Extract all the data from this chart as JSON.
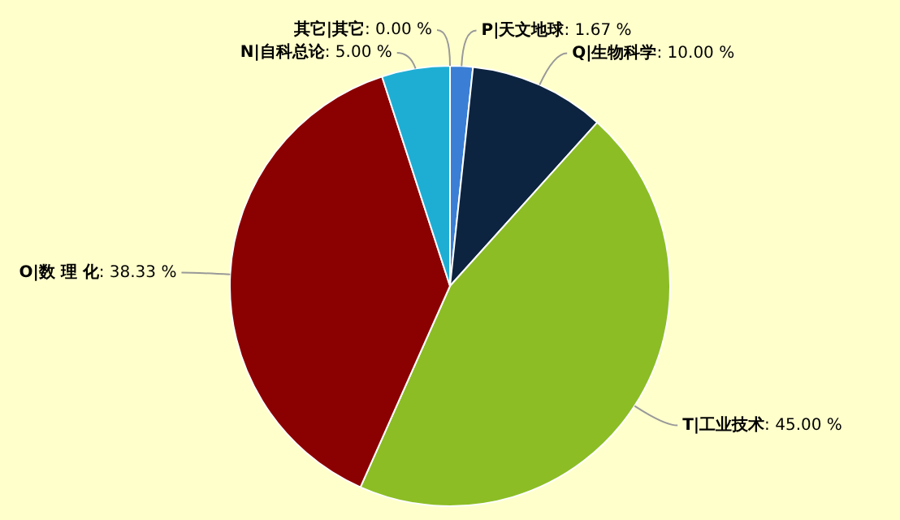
{
  "chart_data": {
    "type": "pie",
    "categories": [
      "其它|其它",
      "P|天文地球",
      "Q|生物科学",
      "T|工业技术",
      "O|数 理 化",
      "N|自科总论"
    ],
    "values": [
      0,
      1.67,
      10,
      45,
      38.33,
      5
    ],
    "colors": [
      "#7f7f7f",
      "#3a7fd5",
      "#0d2440",
      "#8cbd25",
      "#8b0000",
      "#1eaed4"
    ],
    "value_labels": [
      ": 0.00 %",
      ": 1.67 %",
      ": 10.00 %",
      ": 45.00 %",
      ": 38.33 %",
      ": 5.00 %"
    ],
    "legend": false
  }
}
